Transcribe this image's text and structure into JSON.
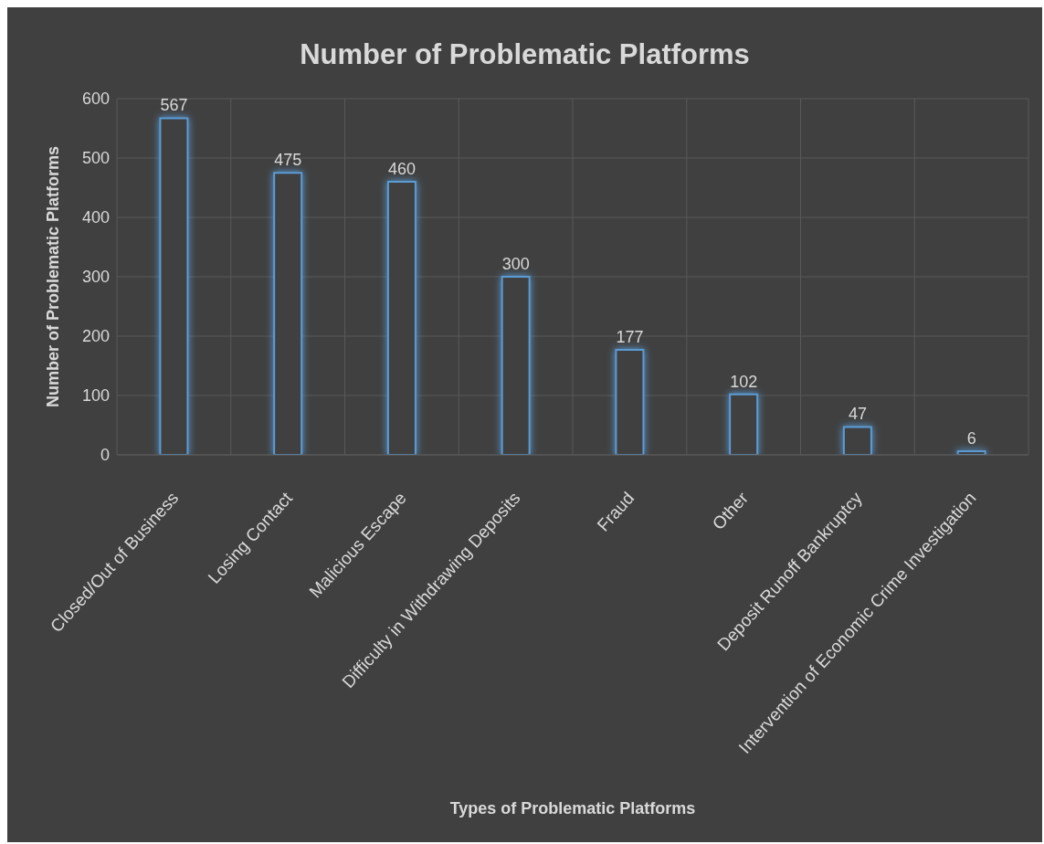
{
  "chart_data": {
    "type": "bar",
    "title": "Number of Problematic Platforms",
    "xlabel": "Types of Problematic Platforms",
    "ylabel": "Number of Problematic Platforms",
    "categories": [
      "Closed/Out of Business",
      "Losing Contact",
      "Malicious Escape",
      "Difficulty in Withdrawing Deposits",
      "Fraud",
      "Other",
      "Deposit Runoff Bankruptcy",
      "Intervention of Economic Crime Investigation"
    ],
    "values": [
      567,
      475,
      460,
      300,
      177,
      102,
      47,
      6
    ],
    "color": "#5b9bd5",
    "ylim": [
      0,
      600
    ],
    "yticks": [
      0,
      100,
      200,
      300,
      400,
      500,
      600
    ],
    "grid": true,
    "data_labels": true
  }
}
